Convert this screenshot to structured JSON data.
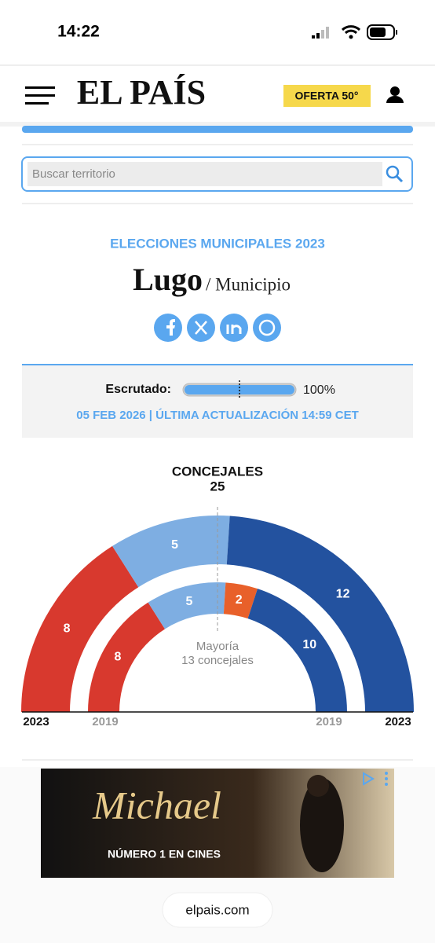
{
  "status_bar": {
    "time": "14:22"
  },
  "header": {
    "logo": "EL PAÍS",
    "offer_button": "OFERTA 50°"
  },
  "search": {
    "placeholder": "Buscar territorio"
  },
  "election": {
    "kicker": "ELECCIONES MUNICIPALES 2023",
    "place": "Lugo",
    "level": "/ Municipio"
  },
  "scrutiny": {
    "label": "Escrutado:",
    "value": 100,
    "value_label": "100%",
    "updated": "05 FEB 2026 | ÚLTIMA ACTUALIZACIÓN 14:59 CET"
  },
  "chart_data": {
    "type": "hemicycle",
    "title": "CONCEJALES",
    "total": 25,
    "annotation": [
      "Mayoría",
      "13 concejales"
    ],
    "series": [
      {
        "name": "2023",
        "values": [
          8,
          5,
          12
        ],
        "colors": [
          "#d8392e",
          "#7eaee2",
          "#23529f"
        ]
      },
      {
        "name": "2019",
        "values": [
          8,
          5,
          2,
          10
        ],
        "colors": [
          "#d8392e",
          "#7eaee2",
          "#e8602a",
          "#23529f"
        ]
      }
    ]
  },
  "ad": {
    "title": "Michael",
    "tagline": "NÚMERO 1 EN CINES"
  },
  "footer": {
    "url": "elpais.com"
  }
}
